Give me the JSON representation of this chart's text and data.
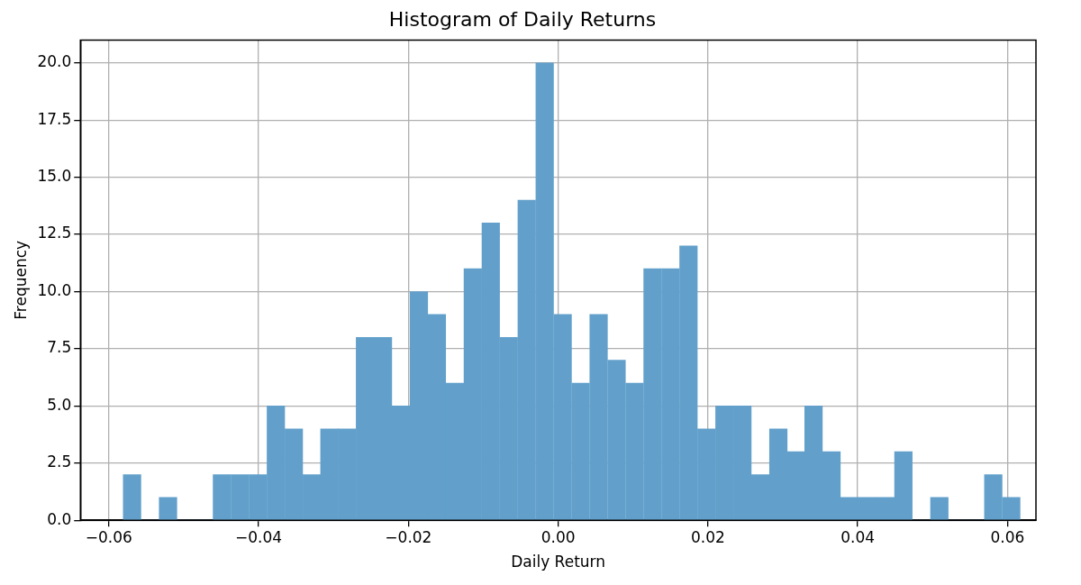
{
  "chart_data": {
    "type": "histogram",
    "title": "Histogram of Daily Returns",
    "xlabel": "Daily Return",
    "ylabel": "Frequency",
    "bins": [
      -0.0581,
      -0.0557,
      -0.0533,
      -0.0509,
      -0.0485,
      -0.0461,
      -0.0437,
      -0.0413,
      -0.0389,
      -0.0365,
      -0.0341,
      -0.0317,
      -0.0294,
      -0.027,
      -0.0246,
      -0.0222,
      -0.0198,
      -0.0174,
      -0.015,
      -0.0126,
      -0.0102,
      -0.0078,
      -0.0054,
      -0.003,
      -0.0006,
      0.0018,
      0.0042,
      0.0066,
      0.009,
      0.0114,
      0.0138,
      0.0162,
      0.0186,
      0.021,
      0.0234,
      0.0258,
      0.0282,
      0.0306,
      0.0329,
      0.0353,
      0.0377,
      0.0401,
      0.0425,
      0.0449,
      0.0473,
      0.0497,
      0.0521,
      0.0545,
      0.0569,
      0.0593,
      0.0617
    ],
    "values": [
      2,
      0,
      1,
      0,
      0,
      2,
      2,
      2,
      5,
      4,
      2,
      4,
      4,
      8,
      8,
      5,
      10,
      9,
      6,
      11,
      13,
      8,
      14,
      20,
      9,
      6,
      9,
      7,
      6,
      11,
      11,
      12,
      4,
      5,
      5,
      2,
      4,
      3,
      5,
      3,
      1,
      1,
      1,
      3,
      0,
      1,
      0,
      0,
      2,
      1
    ],
    "color": "#62a0cb",
    "xlim": [
      -0.0638,
      0.0638
    ],
    "xticks": [
      {
        "value": -0.06,
        "label": "−0.06"
      },
      {
        "value": -0.04,
        "label": "−0.04"
      },
      {
        "value": -0.02,
        "label": "−0.02"
      },
      {
        "value": 0,
        "label": "0.00"
      },
      {
        "value": 0.02,
        "label": "0.02"
      },
      {
        "value": 0.04,
        "label": "0.04"
      },
      {
        "value": 0.06,
        "label": "0.06"
      }
    ],
    "ylim": [
      0,
      21
    ],
    "yticks": [
      {
        "value": 0,
        "label": "0.0"
      },
      {
        "value": 2.5,
        "label": "2.5"
      },
      {
        "value": 5,
        "label": "5.0"
      },
      {
        "value": 7.5,
        "label": "7.5"
      },
      {
        "value": 10,
        "label": "10.0"
      },
      {
        "value": 12.5,
        "label": "12.5"
      },
      {
        "value": 15,
        "label": "15.0"
      },
      {
        "value": 17.5,
        "label": "17.5"
      },
      {
        "value": 20,
        "label": "20.0"
      }
    ],
    "grid": true
  }
}
